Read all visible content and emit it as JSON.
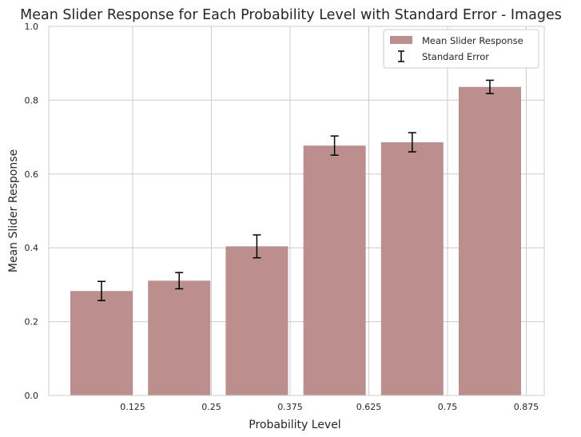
{
  "chart_data": {
    "type": "bar",
    "title": "Mean Slider Response for Each Probability Level with Standard Error - Images",
    "xlabel": "Probability Level",
    "ylabel": "Mean Slider Response",
    "x_ticks": [
      "0.125",
      "0.25",
      "0.375",
      "0.625",
      "0.75",
      "0.875"
    ],
    "categories": [
      "0.125",
      "0.25",
      "0.375",
      "0.625",
      "0.75",
      "0.875"
    ],
    "values": [
      0.283,
      0.311,
      0.404,
      0.677,
      0.686,
      0.836
    ],
    "errors": [
      0.026,
      0.022,
      0.031,
      0.026,
      0.026,
      0.018
    ],
    "y_ticks": [
      "0.0",
      "0.2",
      "0.4",
      "0.6",
      "0.8",
      "1.0"
    ],
    "ylim": [
      0,
      1
    ],
    "grid": true,
    "legend": {
      "position": "top-right",
      "entries": [
        "Mean Slider Response",
        "Standard Error"
      ]
    },
    "colors": {
      "bar": "#bc8f8f",
      "error": "#000000",
      "grid": "#cccccc"
    }
  }
}
